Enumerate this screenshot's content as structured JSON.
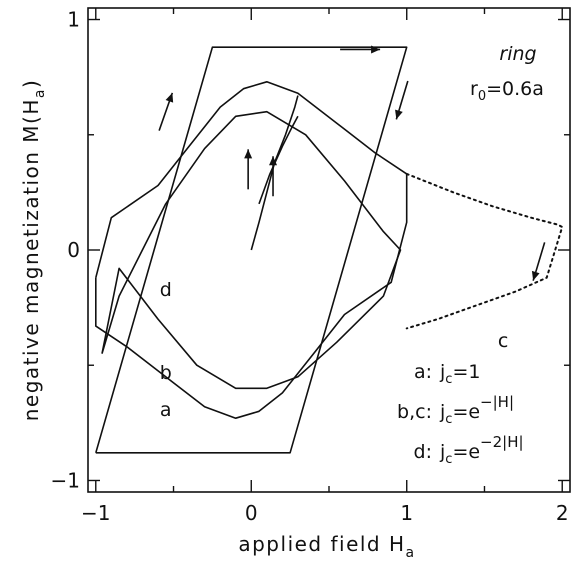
{
  "chart_data": {
    "type": "line",
    "title": "",
    "xlabel": "applied field H",
    "xlabel_sub": "a",
    "ylabel": "negative magnetization M(H",
    "ylabel_sub": "a",
    "ylabel_end": ")",
    "xlim": [
      -1.05,
      2.05
    ],
    "ylim": [
      -1.05,
      1.05
    ],
    "x_ticks": [
      {
        "value": -1,
        "label": "−1"
      },
      {
        "value": 0,
        "label": "0"
      },
      {
        "value": 1,
        "label": "1"
      },
      {
        "value": 2,
        "label": "2"
      }
    ],
    "y_ticks": [
      {
        "value": -1,
        "label": "−1"
      },
      {
        "value": 0,
        "label": "0"
      },
      {
        "value": 1,
        "label": "1"
      }
    ],
    "grid": false,
    "annotation_title": "ring",
    "annotation_param": "r",
    "annotation_param_sub": "0",
    "annotation_param_value": "=0.6a",
    "series": [
      {
        "id": "a",
        "style": "solid",
        "x": [
          -1.0,
          -0.25,
          1.0,
          1.0,
          0.25,
          -1.0,
          -1.0
        ],
        "y": [
          -0.88,
          0.88,
          0.88,
          0.88,
          -0.88,
          -0.88,
          -0.88
        ]
      },
      {
        "id": "b",
        "style": "solid",
        "x": [
          -1.0,
          -0.9,
          -0.6,
          -0.4,
          -0.2,
          -0.05,
          0.1,
          0.3,
          0.55,
          0.8,
          1.0,
          1.0,
          0.9,
          0.6,
          0.4,
          0.2,
          0.05,
          -0.1,
          -0.3,
          -0.55,
          -0.8,
          -1.0,
          -1.0
        ],
        "y": [
          -0.12,
          0.14,
          0.28,
          0.45,
          0.62,
          0.7,
          0.73,
          0.68,
          0.55,
          0.42,
          0.33,
          0.12,
          -0.14,
          -0.28,
          -0.45,
          -0.62,
          -0.7,
          -0.73,
          -0.68,
          -0.55,
          -0.42,
          -0.33,
          -0.12
        ]
      },
      {
        "id": "c",
        "style": "dotted",
        "x": [
          1.0,
          1.3,
          1.55,
          1.8,
          1.97,
          2.0,
          1.9,
          1.7,
          1.45,
          1.2,
          1.0
        ],
        "y": [
          0.33,
          0.25,
          0.19,
          0.14,
          0.11,
          0.1,
          -0.12,
          -0.18,
          -0.24,
          -0.3,
          -0.34
        ]
      },
      {
        "id": "d",
        "style": "solid",
        "x": [
          -0.96,
          -0.85,
          -0.55,
          -0.3,
          -0.1,
          0.1,
          0.35,
          0.6,
          0.85,
          0.96,
          0.85,
          0.55,
          0.3,
          0.1,
          -0.1,
          -0.35,
          -0.6,
          -0.85,
          -0.96
        ],
        "y": [
          -0.45,
          -0.2,
          0.2,
          0.44,
          0.58,
          0.6,
          0.5,
          0.3,
          0.08,
          0.0,
          -0.2,
          -0.4,
          -0.55,
          -0.6,
          -0.6,
          -0.5,
          -0.3,
          -0.08,
          -0.45
        ]
      },
      {
        "id": "virgin",
        "style": "solid",
        "x": [
          0.0,
          0.05,
          0.1,
          0.15,
          0.22,
          0.28,
          0.3
        ],
        "y": [
          0.0,
          0.12,
          0.25,
          0.38,
          0.5,
          0.62,
          0.67
        ]
      },
      {
        "id": "virgin2",
        "style": "solid",
        "x": [
          0.05,
          0.12,
          0.2,
          0.26,
          0.3
        ],
        "y": [
          0.2,
          0.33,
          0.45,
          0.53,
          0.58
        ]
      }
    ],
    "curve_labels": [
      {
        "text": "a",
        "x": -0.55,
        "y": -0.72
      },
      {
        "text": "b",
        "x": -0.55,
        "y": -0.56
      },
      {
        "text": "d",
        "x": -0.55,
        "y": -0.2
      },
      {
        "text": "c",
        "x": 1.62,
        "y": -0.42
      }
    ],
    "legend": {
      "placement": "bottom-right",
      "entries": [
        {
          "key": "a:",
          "base": "j",
          "sub": "c",
          "rest": "=1",
          "sup": ""
        },
        {
          "key": "b,c:",
          "base": "j",
          "sub": "c",
          "rest": "=e",
          "sup": "−|H|"
        },
        {
          "key": "d:",
          "base": "j",
          "sub": "c",
          "rest": "=e",
          "sup": "−2|H|"
        }
      ]
    },
    "arrows": [
      {
        "direction": "up-right",
        "x": -0.55,
        "y": 0.6
      },
      {
        "direction": "up",
        "x": -0.02,
        "y": 0.35
      },
      {
        "direction": "up",
        "x": 0.14,
        "y": 0.32
      },
      {
        "direction": "right",
        "x": 0.7,
        "y": 0.87
      },
      {
        "direction": "down-left",
        "x": 0.97,
        "y": 0.65
      },
      {
        "direction": "down-left",
        "x": 1.85,
        "y": -0.05
      }
    ]
  }
}
